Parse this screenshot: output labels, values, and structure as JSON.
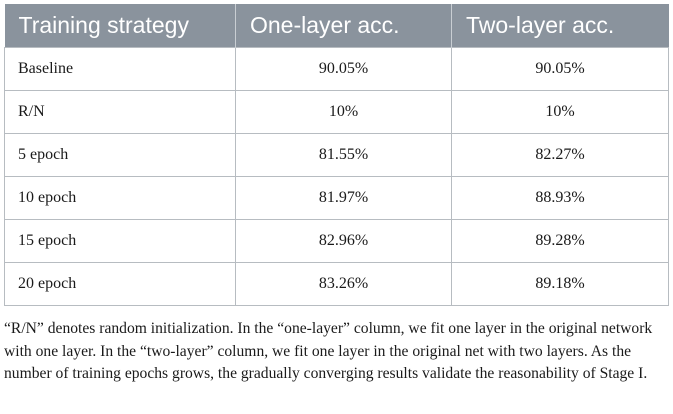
{
  "table": {
    "columns": [
      "Training strategy",
      "One-layer acc.",
      "Two-layer acc."
    ],
    "rows": [
      [
        "Baseline",
        "90.05%",
        "90.05%"
      ],
      [
        "R/N",
        "10%",
        "10%"
      ],
      [
        "5 epoch",
        "81.55%",
        "82.27%"
      ],
      [
        "10 epoch",
        "81.97%",
        "88.93%"
      ],
      [
        "15 epoch",
        "82.96%",
        "89.28%"
      ],
      [
        "20 epoch",
        "83.26%",
        "89.18%"
      ]
    ]
  },
  "caption": "“R/N” denotes random initialization. In the “one-layer” column, we fit one layer in the original network with one layer. In the “two-layer” column, we fit one layer in the original net with two layers. As the number of training epochs grows, the gradually converging results validate the reasonability of Stage I.",
  "colors": {
    "header_background": "#8a939d",
    "header_text": "#ffffff",
    "grid_line": "#b7bcc1"
  }
}
